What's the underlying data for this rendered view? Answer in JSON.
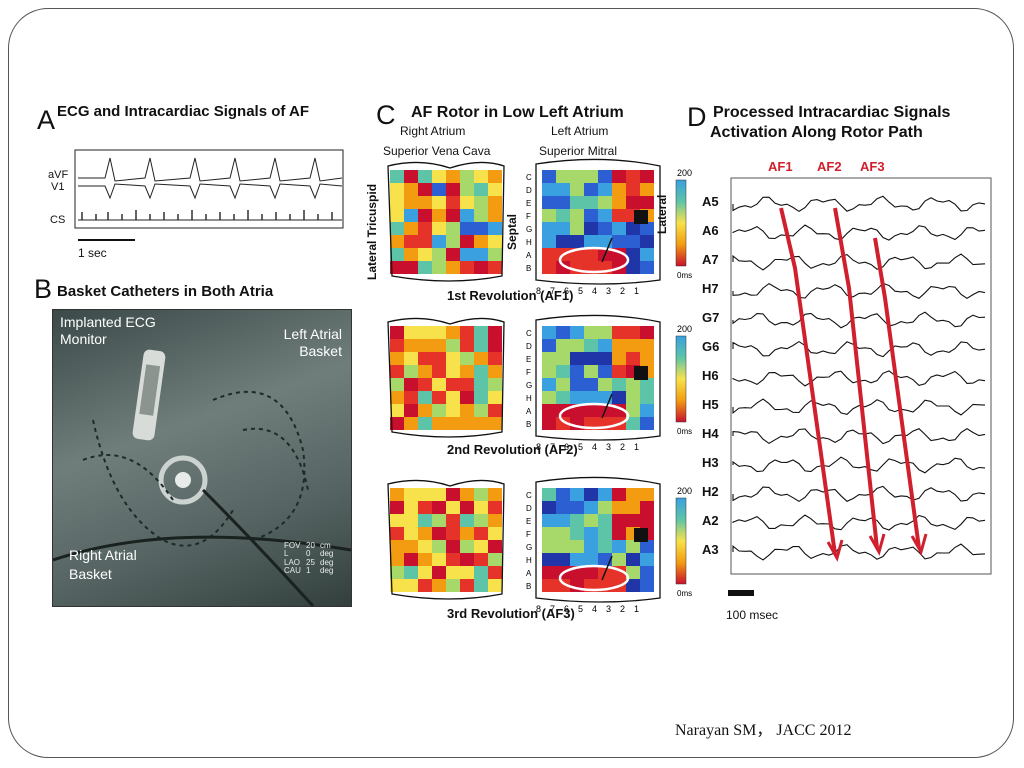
{
  "panelA": {
    "letter": "A",
    "title": "ECG and Intracardiac Signals of AF",
    "leads": [
      "aVF",
      "V1",
      "CS"
    ],
    "scale_label": "1 sec"
  },
  "panelB": {
    "letter": "B",
    "title": "Basket Catheters in Both Atria",
    "label_implanted_ecg": [
      "Implanted ECG",
      "Monitor"
    ],
    "label_left_basket": [
      "Left Atrial",
      "Basket"
    ],
    "label_right_basket": [
      "Right Atrial",
      "Basket"
    ],
    "fov_keys": [
      "FOV",
      "L",
      "LAO",
      "CAU"
    ],
    "fov_values": [
      "20",
      "0",
      "25",
      "1"
    ],
    "fov_units": [
      "cm",
      "deg",
      "deg",
      "deg"
    ]
  },
  "panelC": {
    "letter": "C",
    "title": "AF Rotor in Low Left Atrium",
    "ra_label": "Right Atrium",
    "la_label": "Left Atrium",
    "ra_sub": "Superior Vena Cava",
    "la_sub": "Superior Mitral",
    "side_lateral_tricuspid": "Lateral Tricuspid",
    "side_septal": "Septal",
    "side_lateral": "Lateral",
    "row_letters": [
      "C",
      "D",
      "E",
      "F",
      "G",
      "H",
      "A",
      "B"
    ],
    "col_numbers": [
      "8",
      "7",
      "6",
      "5",
      "4",
      "3",
      "2",
      "1"
    ],
    "scale_top": "200",
    "scale_bottom": "0ms",
    "revolutions": [
      "1st Revolution (AF1)",
      "2nd Revolution (AF2)",
      "3rd Revolution (AF3)"
    ]
  },
  "panelD": {
    "letter": "D",
    "title_line1": "Processed Intracardiac Signals",
    "title_line2": "Activation Along Rotor Path",
    "af_labels": [
      "AF1",
      "AF2",
      "AF3"
    ],
    "electrodes": [
      "A5",
      "A6",
      "A7",
      "H7",
      "G7",
      "G6",
      "H6",
      "H5",
      "H4",
      "H3",
      "H2",
      "A2",
      "A3"
    ],
    "scale_label": "100 msec"
  },
  "citation": "Narayan SM， JACC 2012",
  "colors": {
    "arrow": "#d0202d",
    "frame": "#555555"
  }
}
